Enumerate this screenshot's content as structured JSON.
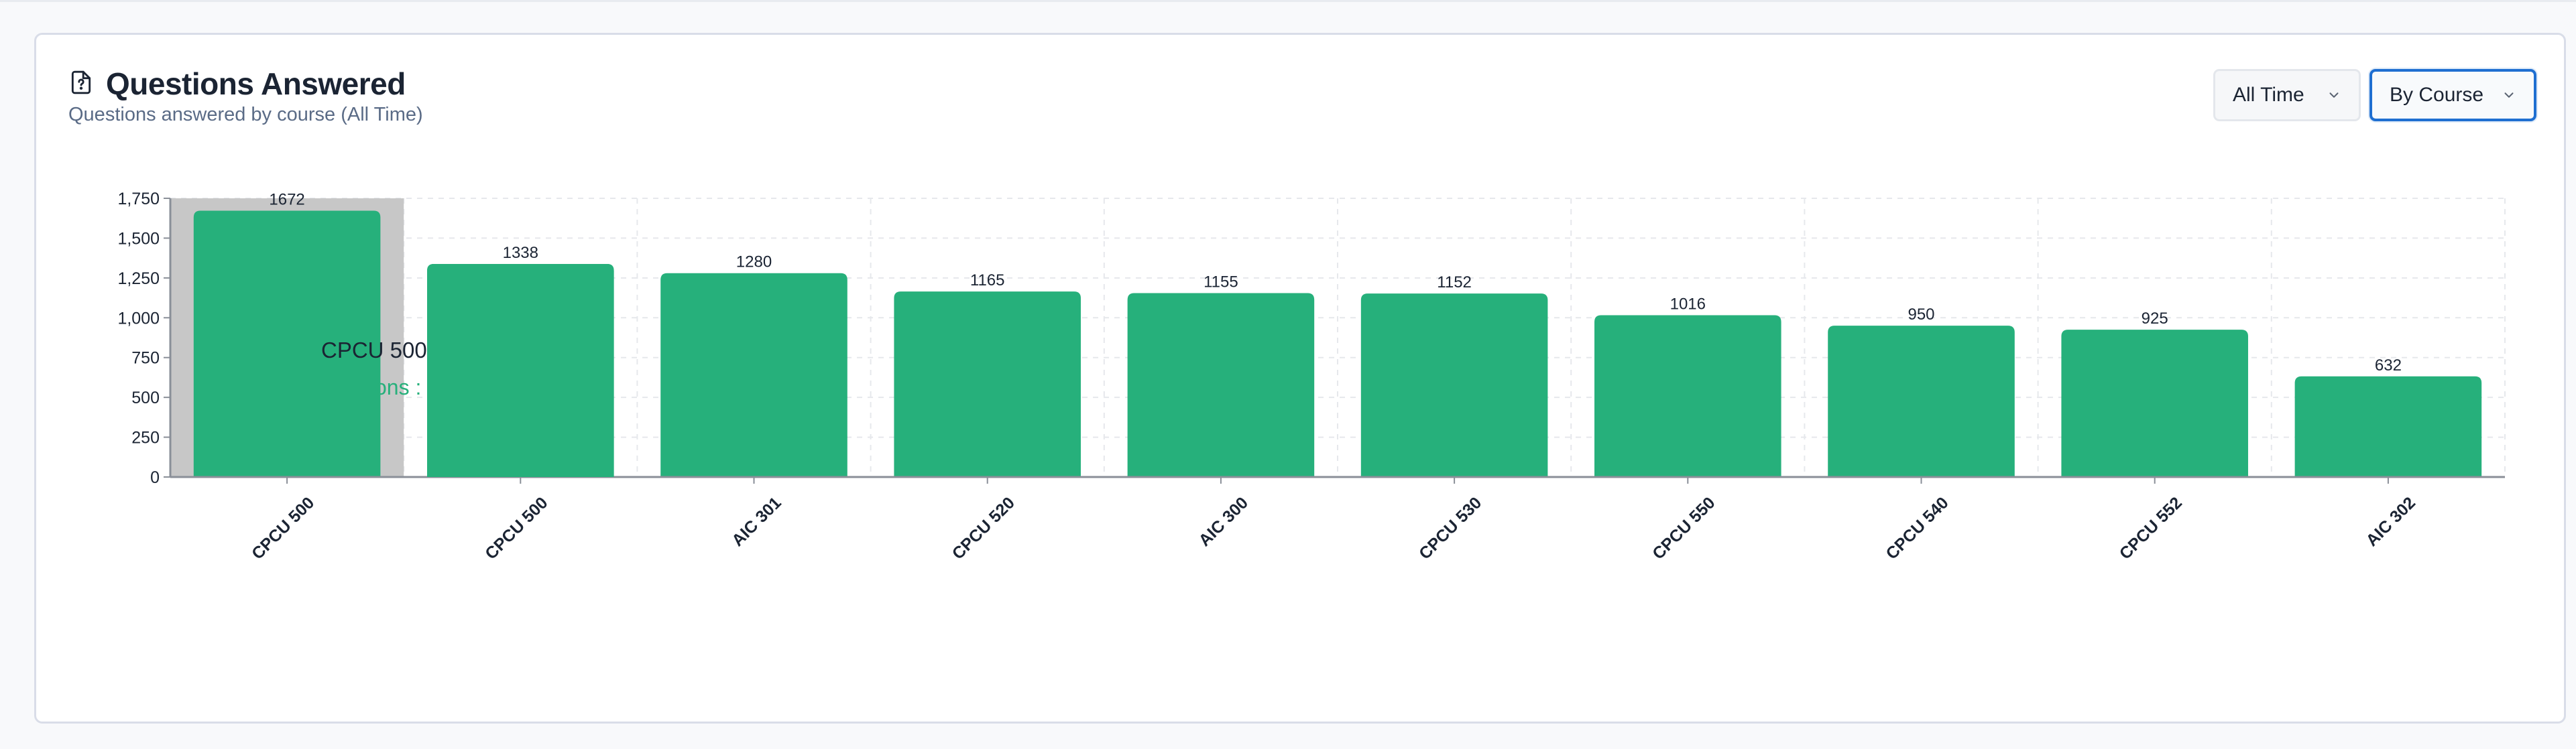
{
  "card": {
    "title": "Questions Answered",
    "subtitle": "Questions answered by course (All Time)",
    "icon": "help-document-icon"
  },
  "filters": {
    "time_range": "All Time",
    "group_by": "By Course"
  },
  "colors": {
    "bar": "#26b07b",
    "hover_band": "#c7c7c7",
    "tooltip_value": "#26b07b",
    "focus_ring": "#1f6fd1"
  },
  "tooltip": {
    "label": "CPCU 500",
    "value_text": "ons :"
  },
  "chart_data": {
    "type": "bar",
    "categories": [
      "CPCU 500",
      "CPCU 500",
      "AIC 301",
      "CPCU 520",
      "AIC 300",
      "CPCU 530",
      "CPCU 550",
      "CPCU 540",
      "CPCU 552",
      "AIC 302"
    ],
    "values": [
      1672,
      1338,
      1280,
      1165,
      1155,
      1152,
      1016,
      950,
      925,
      632
    ],
    "data_labels": [
      "1672",
      "1338",
      "1280",
      "1165",
      "1155",
      "1152",
      "1016",
      "950",
      "925",
      "632"
    ],
    "y_ticks": [
      0,
      250,
      500,
      750,
      1000,
      1250,
      1500,
      1750
    ],
    "y_tick_labels": [
      "0",
      "250",
      "500",
      "750",
      "1,000",
      "1,250",
      "1,500",
      "1,750"
    ],
    "ylim": [
      0,
      1750
    ],
    "grid": true,
    "hovered_index": 0
  }
}
